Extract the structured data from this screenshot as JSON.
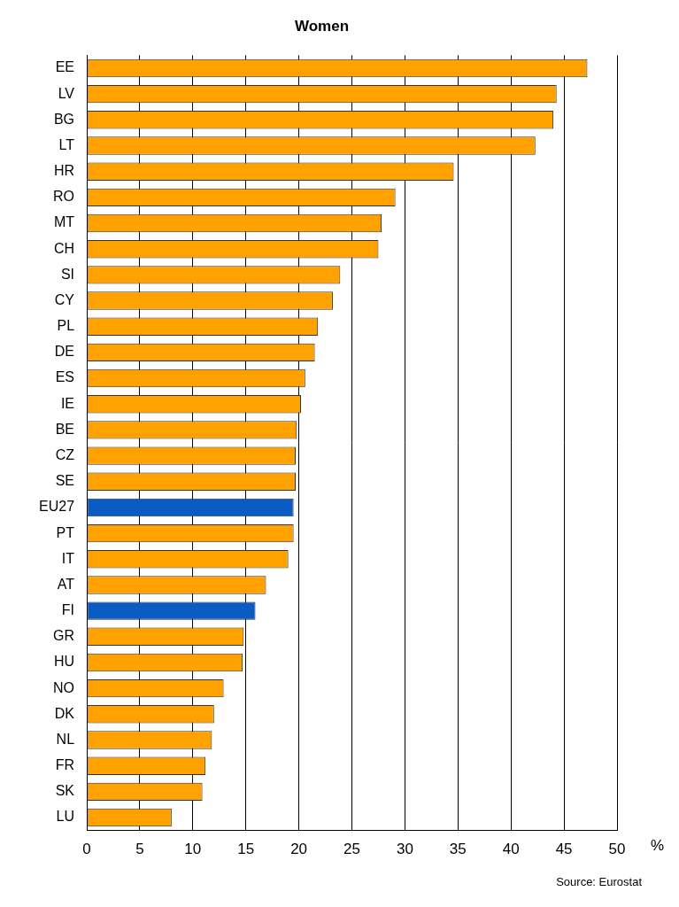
{
  "chart_data": {
    "type": "bar",
    "orientation": "horizontal",
    "title": "Women",
    "categories": [
      "EE",
      "LV",
      "BG",
      "LT",
      "HR",
      "RO",
      "MT",
      "CH",
      "SI",
      "CY",
      "PL",
      "DE",
      "ES",
      "IE",
      "BE",
      "CZ",
      "SE",
      "EU27",
      "PT",
      "IT",
      "AT",
      "FI",
      "GR",
      "HU",
      "NO",
      "DK",
      "NL",
      "FR",
      "SK",
      "LU"
    ],
    "values": [
      47.2,
      44.3,
      44.0,
      42.3,
      34.6,
      29.1,
      27.8,
      27.5,
      23.9,
      23.2,
      21.8,
      21.5,
      20.6,
      20.2,
      19.8,
      19.7,
      19.7,
      19.5,
      19.5,
      19.0,
      16.9,
      15.9,
      14.8,
      14.7,
      12.9,
      12.0,
      11.8,
      11.2,
      10.9,
      8.0
    ],
    "colors": [
      "#ffa200",
      "#ffa200",
      "#ffa200",
      "#ffa200",
      "#ffa200",
      "#ffa200",
      "#ffa200",
      "#ffa200",
      "#ffa200",
      "#ffa200",
      "#ffa200",
      "#ffa200",
      "#ffa200",
      "#ffa200",
      "#ffa200",
      "#ffa200",
      "#ffa200",
      "#0a5bc4",
      "#ffa200",
      "#ffa200",
      "#ffa200",
      "#0a5bc4",
      "#ffa200",
      "#ffa200",
      "#ffa200",
      "#ffa200",
      "#ffa200",
      "#ffa200",
      "#ffa200",
      "#ffa200"
    ],
    "x_label": "%",
    "annotations": [
      "Source: Eurostat"
    ],
    "xlim": [
      0,
      50
    ],
    "xticks": [
      0,
      5,
      10,
      15,
      20,
      25,
      30,
      35,
      40,
      45,
      50
    ],
    "grid": true
  }
}
